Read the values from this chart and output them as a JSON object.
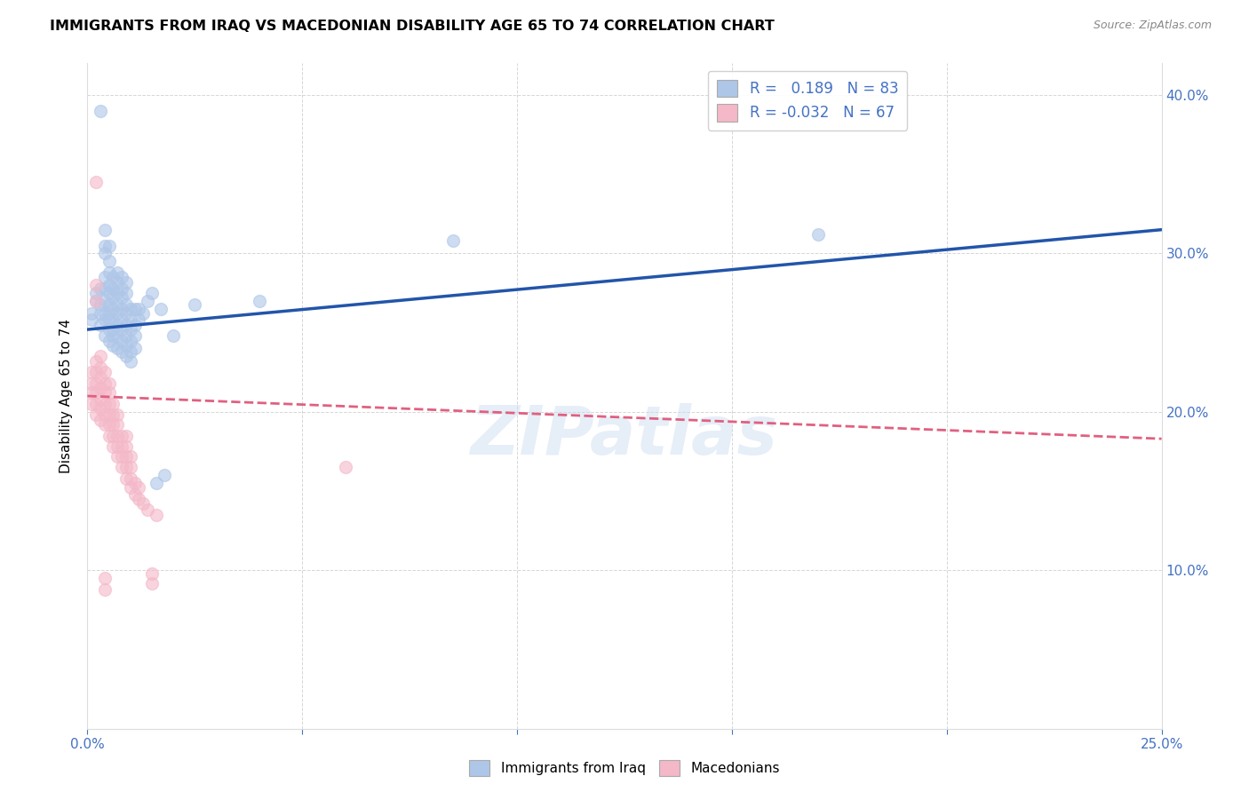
{
  "title": "IMMIGRANTS FROM IRAQ VS MACEDONIAN DISABILITY AGE 65 TO 74 CORRELATION CHART",
  "source": "Source: ZipAtlas.com",
  "ylabel_label": "Disability Age 65 to 74",
  "xlim": [
    0.0,
    0.25
  ],
  "ylim": [
    0.0,
    0.42
  ],
  "x_ticks": [
    0.0,
    0.05,
    0.1,
    0.15,
    0.2,
    0.25
  ],
  "y_ticks": [
    0.0,
    0.1,
    0.2,
    0.3,
    0.4
  ],
  "legend_r_iraq": "0.189",
  "legend_n_iraq": "83",
  "legend_r_mac": "-0.032",
  "legend_n_mac": "67",
  "iraq_color": "#aec6e8",
  "mac_color": "#f4b8c8",
  "iraq_line_color": "#2255aa",
  "mac_line_color": "#e06080",
  "watermark": "ZIPatlas",
  "iraq_points": [
    [
      0.001,
      0.258
    ],
    [
      0.001,
      0.262
    ],
    [
      0.002,
      0.27
    ],
    [
      0.002,
      0.275
    ],
    [
      0.003,
      0.255
    ],
    [
      0.003,
      0.262
    ],
    [
      0.003,
      0.268
    ],
    [
      0.003,
      0.278
    ],
    [
      0.003,
      0.39
    ],
    [
      0.004,
      0.248
    ],
    [
      0.004,
      0.258
    ],
    [
      0.004,
      0.262
    ],
    [
      0.004,
      0.27
    ],
    [
      0.004,
      0.278
    ],
    [
      0.004,
      0.285
    ],
    [
      0.004,
      0.3
    ],
    [
      0.004,
      0.305
    ],
    [
      0.004,
      0.315
    ],
    [
      0.005,
      0.245
    ],
    [
      0.005,
      0.252
    ],
    [
      0.005,
      0.258
    ],
    [
      0.005,
      0.262
    ],
    [
      0.005,
      0.268
    ],
    [
      0.005,
      0.275
    ],
    [
      0.005,
      0.28
    ],
    [
      0.005,
      0.288
    ],
    [
      0.005,
      0.295
    ],
    [
      0.005,
      0.305
    ],
    [
      0.006,
      0.242
    ],
    [
      0.006,
      0.248
    ],
    [
      0.006,
      0.252
    ],
    [
      0.006,
      0.258
    ],
    [
      0.006,
      0.265
    ],
    [
      0.006,
      0.272
    ],
    [
      0.006,
      0.278
    ],
    [
      0.006,
      0.285
    ],
    [
      0.007,
      0.24
    ],
    [
      0.007,
      0.248
    ],
    [
      0.007,
      0.255
    ],
    [
      0.007,
      0.262
    ],
    [
      0.007,
      0.268
    ],
    [
      0.007,
      0.275
    ],
    [
      0.007,
      0.282
    ],
    [
      0.007,
      0.288
    ],
    [
      0.008,
      0.238
    ],
    [
      0.008,
      0.245
    ],
    [
      0.008,
      0.252
    ],
    [
      0.008,
      0.258
    ],
    [
      0.008,
      0.265
    ],
    [
      0.008,
      0.272
    ],
    [
      0.008,
      0.278
    ],
    [
      0.008,
      0.285
    ],
    [
      0.009,
      0.235
    ],
    [
      0.009,
      0.242
    ],
    [
      0.009,
      0.248
    ],
    [
      0.009,
      0.255
    ],
    [
      0.009,
      0.262
    ],
    [
      0.009,
      0.268
    ],
    [
      0.009,
      0.275
    ],
    [
      0.009,
      0.282
    ],
    [
      0.01,
      0.232
    ],
    [
      0.01,
      0.238
    ],
    [
      0.01,
      0.245
    ],
    [
      0.01,
      0.252
    ],
    [
      0.01,
      0.258
    ],
    [
      0.01,
      0.265
    ],
    [
      0.011,
      0.24
    ],
    [
      0.011,
      0.248
    ],
    [
      0.011,
      0.255
    ],
    [
      0.011,
      0.265
    ],
    [
      0.012,
      0.258
    ],
    [
      0.012,
      0.265
    ],
    [
      0.013,
      0.262
    ],
    [
      0.014,
      0.27
    ],
    [
      0.015,
      0.275
    ],
    [
      0.016,
      0.155
    ],
    [
      0.017,
      0.265
    ],
    [
      0.018,
      0.16
    ],
    [
      0.02,
      0.248
    ],
    [
      0.025,
      0.268
    ],
    [
      0.04,
      0.27
    ],
    [
      0.085,
      0.308
    ],
    [
      0.17,
      0.312
    ]
  ],
  "mac_points": [
    [
      0.001,
      0.205
    ],
    [
      0.001,
      0.212
    ],
    [
      0.001,
      0.218
    ],
    [
      0.001,
      0.225
    ],
    [
      0.002,
      0.198
    ],
    [
      0.002,
      0.205
    ],
    [
      0.002,
      0.212
    ],
    [
      0.002,
      0.218
    ],
    [
      0.002,
      0.225
    ],
    [
      0.002,
      0.232
    ],
    [
      0.002,
      0.27
    ],
    [
      0.002,
      0.28
    ],
    [
      0.002,
      0.345
    ],
    [
      0.003,
      0.195
    ],
    [
      0.003,
      0.202
    ],
    [
      0.003,
      0.208
    ],
    [
      0.003,
      0.215
    ],
    [
      0.003,
      0.222
    ],
    [
      0.003,
      0.228
    ],
    [
      0.003,
      0.235
    ],
    [
      0.004,
      0.088
    ],
    [
      0.004,
      0.095
    ],
    [
      0.004,
      0.192
    ],
    [
      0.004,
      0.198
    ],
    [
      0.004,
      0.205
    ],
    [
      0.004,
      0.212
    ],
    [
      0.004,
      0.218
    ],
    [
      0.004,
      0.225
    ],
    [
      0.005,
      0.185
    ],
    [
      0.005,
      0.192
    ],
    [
      0.005,
      0.198
    ],
    [
      0.005,
      0.205
    ],
    [
      0.005,
      0.212
    ],
    [
      0.005,
      0.218
    ],
    [
      0.006,
      0.178
    ],
    [
      0.006,
      0.185
    ],
    [
      0.006,
      0.192
    ],
    [
      0.006,
      0.198
    ],
    [
      0.006,
      0.205
    ],
    [
      0.007,
      0.172
    ],
    [
      0.007,
      0.178
    ],
    [
      0.007,
      0.185
    ],
    [
      0.007,
      0.192
    ],
    [
      0.007,
      0.198
    ],
    [
      0.008,
      0.165
    ],
    [
      0.008,
      0.172
    ],
    [
      0.008,
      0.178
    ],
    [
      0.008,
      0.185
    ],
    [
      0.009,
      0.158
    ],
    [
      0.009,
      0.165
    ],
    [
      0.009,
      0.172
    ],
    [
      0.009,
      0.178
    ],
    [
      0.009,
      0.185
    ],
    [
      0.01,
      0.152
    ],
    [
      0.01,
      0.158
    ],
    [
      0.01,
      0.165
    ],
    [
      0.01,
      0.172
    ],
    [
      0.011,
      0.148
    ],
    [
      0.011,
      0.155
    ],
    [
      0.012,
      0.145
    ],
    [
      0.012,
      0.152
    ],
    [
      0.013,
      0.142
    ],
    [
      0.014,
      0.138
    ],
    [
      0.015,
      0.092
    ],
    [
      0.015,
      0.098
    ],
    [
      0.016,
      0.135
    ],
    [
      0.06,
      0.165
    ]
  ]
}
